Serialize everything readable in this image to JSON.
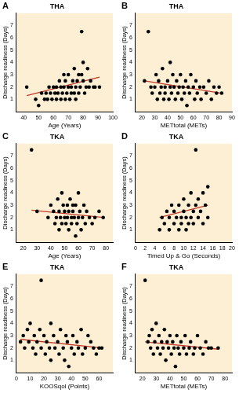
{
  "chart_data": [
    {
      "type": "scatter",
      "panel_label": "A",
      "title": "THA",
      "x_label": "Age (Years)",
      "y_label": "Discharge readiness (Days)",
      "xlim": [
        35,
        100
      ],
      "xticks": [
        40,
        50,
        60,
        70,
        80,
        90,
        100
      ],
      "ylim": [
        0,
        8
      ],
      "yticks": [
        1,
        2,
        3,
        4,
        5,
        6,
        7
      ],
      "grid": false,
      "series": [
        {
          "color": "#000000",
          "marker": "circle",
          "x": [
            42,
            48,
            50,
            52,
            54,
            55,
            56,
            57,
            58,
            59,
            60,
            61,
            62,
            62,
            63,
            64,
            65,
            65,
            66,
            67,
            67,
            68,
            68,
            69,
            70,
            70,
            71,
            72,
            72,
            73,
            74,
            74,
            75,
            75,
            76,
            77,
            77,
            78,
            79,
            79,
            80,
            80,
            81,
            82,
            83,
            84,
            85,
            87,
            88,
            91
          ],
          "values": [
            2,
            1,
            0.5,
            1.5,
            1,
            1.5,
            1,
            2,
            1.5,
            1,
            2,
            1.5,
            1,
            2,
            1.5,
            2.5,
            1,
            2,
            1.5,
            2,
            3,
            1,
            2.5,
            1.5,
            2,
            3,
            1,
            2,
            1.5,
            2.5,
            1.5,
            3.5,
            2,
            1,
            2.5,
            3,
            1.5,
            2,
            6.5,
            3,
            2.5,
            4,
            1.5,
            2,
            3.5,
            2,
            2.5,
            2,
            2,
            2
          ]
        },
        {
          "type": "line",
          "color": "#c0392b",
          "line_style": "solid",
          "x": [
            42,
            91
          ],
          "values": [
            1.3,
            2.8
          ]
        }
      ]
    },
    {
      "type": "scatter",
      "panel_label": "B",
      "title": "THA",
      "x_label": "METtotal (METs)",
      "y_label": "Discharge readiness (Days)",
      "xlim": [
        15,
        90
      ],
      "xticks": [
        20,
        30,
        40,
        50,
        60,
        70,
        80,
        90
      ],
      "ylim": [
        0,
        8
      ],
      "yticks": [
        1,
        2,
        3,
        4,
        5,
        6,
        7
      ],
      "grid": false,
      "series": [
        {
          "color": "#000000",
          "marker": "circle",
          "x": [
            22,
            25,
            27,
            28,
            30,
            31,
            32,
            33,
            34,
            35,
            36,
            37,
            38,
            38,
            40,
            41,
            42,
            42,
            43,
            44,
            45,
            46,
            47,
            48,
            49,
            50,
            51,
            52,
            53,
            54,
            55,
            56,
            57,
            58,
            60,
            61,
            62,
            63,
            65,
            66,
            68,
            70,
            72,
            74,
            76,
            78,
            80,
            82
          ],
          "values": [
            2.5,
            6.5,
            2,
            1.5,
            2,
            3,
            1,
            2.5,
            1.5,
            2,
            3.5,
            1,
            2,
            1.5,
            2.5,
            1,
            2,
            4,
            1.5,
            3,
            2,
            1,
            2.5,
            1.5,
            2,
            3,
            1,
            2,
            1.5,
            2.5,
            0.5,
            2,
            1.5,
            3,
            2,
            1,
            2.5,
            1.5,
            2,
            1,
            2,
            1.5,
            2.5,
            1,
            2,
            1.5,
            2,
            1.5
          ]
        },
        {
          "type": "line",
          "color": "#c0392b",
          "line_style": "solid",
          "x": [
            22,
            82
          ],
          "values": [
            2.5,
            1.5
          ]
        }
      ]
    },
    {
      "type": "scatter",
      "panel_label": "C",
      "title": "TKA",
      "x_label": "Age (Years)",
      "y_label": "Discharge readiness (Days)",
      "xlim": [
        15,
        85
      ],
      "xticks": [
        20,
        30,
        40,
        50,
        60,
        70,
        80
      ],
      "ylim": [
        0,
        8
      ],
      "yticks": [
        1,
        2,
        3,
        4,
        5,
        6,
        7
      ],
      "grid": false,
      "series": [
        {
          "color": "#000000",
          "marker": "circle",
          "x": [
            26,
            30,
            38,
            40,
            42,
            43,
            44,
            45,
            46,
            46,
            47,
            48,
            48,
            49,
            50,
            50,
            51,
            52,
            52,
            53,
            53,
            54,
            55,
            55,
            56,
            56,
            57,
            58,
            58,
            59,
            60,
            60,
            61,
            62,
            63,
            64,
            65,
            66,
            68,
            70,
            72,
            75,
            78
          ],
          "values": [
            7.5,
            2.5,
            2,
            3,
            2.5,
            1.5,
            2,
            3.5,
            1,
            2.5,
            2,
            4,
            1.5,
            3,
            2,
            2.5,
            1.5,
            3,
            2,
            1,
            2.5,
            3.5,
            2,
            1.5,
            3,
            2.5,
            2,
            0.5,
            3,
            1.5,
            2,
            4,
            2.5,
            1,
            2,
            3,
            1.5,
            2.5,
            2,
            1.5,
            2,
            2.5,
            2
          ]
        },
        {
          "type": "line",
          "color": "#c0392b",
          "line_style": "solid",
          "x": [
            26,
            78
          ],
          "values": [
            2.6,
            2.0
          ]
        }
      ]
    },
    {
      "type": "scatter",
      "panel_label": "D",
      "title": "TKA",
      "x_label": "Timed Up & Go (Seconds)",
      "y_label": "Discharge readiness (Days)",
      "xlim": [
        0,
        20
      ],
      "xticks": [
        0,
        2,
        4,
        6,
        8,
        10,
        12,
        14,
        16,
        18,
        20
      ],
      "ylim": [
        0,
        8
      ],
      "yticks": [
        1,
        2,
        3,
        4,
        5,
        6,
        7
      ],
      "grid": false,
      "series": [
        {
          "color": "#000000",
          "marker": "circle",
          "x": [
            5,
            5.5,
            6,
            6.5,
            7,
            7,
            7.5,
            8,
            8,
            8.5,
            9,
            9,
            9.5,
            9.5,
            10,
            10,
            10.5,
            10.5,
            11,
            11,
            11.5,
            11.5,
            12,
            12,
            12.5,
            12.5,
            13,
            13,
            13.5,
            14,
            14,
            14.5,
            15,
            15
          ],
          "values": [
            1,
            2,
            1.5,
            2.5,
            1,
            2,
            3,
            1.5,
            2.5,
            2,
            1,
            3,
            2,
            1.5,
            2.5,
            3.5,
            2,
            1,
            3,
            1.5,
            2,
            4,
            2.5,
            1.5,
            7.5,
            3,
            2,
            3.5,
            2.5,
            4,
            1.5,
            3,
            4.5,
            2
          ]
        },
        {
          "type": "line",
          "color": "#c0392b",
          "line_style": "solid",
          "x": [
            5,
            15
          ],
          "values": [
            2.0,
            3.0
          ]
        }
      ]
    },
    {
      "type": "scatter",
      "panel_label": "E",
      "title": "TKA",
      "x_label": "KOOSqol (Points)",
      "y_label": "Discharge readiness (Days)",
      "xlim": [
        0,
        70
      ],
      "xticks": [
        0,
        10,
        20,
        30,
        40,
        50,
        60
      ],
      "ylim": [
        0,
        8
      ],
      "yticks": [
        1,
        2,
        3,
        4,
        5,
        6,
        7
      ],
      "grid": false,
      "series": [
        {
          "color": "#000000",
          "marker": "circle",
          "x": [
            3,
            5,
            6,
            8,
            9,
            10,
            12,
            13,
            14,
            15,
            17,
            18,
            18,
            20,
            21,
            22,
            24,
            25,
            25,
            27,
            28,
            30,
            31,
            32,
            34,
            35,
            36,
            37,
            38,
            40,
            41,
            42,
            44,
            45,
            47,
            48,
            50,
            52,
            54,
            56,
            58,
            60,
            62
          ],
          "values": [
            2.5,
            3,
            2,
            3.5,
            2.5,
            4,
            2,
            3,
            1.5,
            2.5,
            3.5,
            7.5,
            2,
            3,
            1.5,
            2.5,
            2,
            4,
            1,
            3,
            2,
            2.5,
            1.5,
            3.5,
            2,
            1,
            3,
            2.5,
            0.5,
            2,
            3,
            1.5,
            2.5,
            2,
            3.5,
            1.5,
            2,
            3,
            2.5,
            2,
            1.5,
            2,
            2
          ]
        },
        {
          "type": "line",
          "color": "#c0392b",
          "line_style": "solid",
          "x": [
            3,
            62
          ],
          "values": [
            2.7,
            2.0
          ]
        }
      ]
    },
    {
      "type": "scatter",
      "panel_label": "F",
      "title": "TKA",
      "x_label": "METtotal (METs)",
      "y_label": "Discharge readiness (Days)",
      "xlim": [
        15,
        85
      ],
      "xticks": [
        20,
        30,
        40,
        50,
        60,
        70,
        80
      ],
      "ylim": [
        0,
        8
      ],
      "yticks": [
        1,
        2,
        3,
        4,
        5,
        6,
        7
      ],
      "grid": false,
      "series": [
        {
          "color": "#000000",
          "marker": "circle",
          "x": [
            22,
            24,
            25,
            26,
            27,
            28,
            29,
            30,
            31,
            32,
            33,
            34,
            35,
            36,
            37,
            38,
            39,
            40,
            41,
            42,
            43,
            44,
            45,
            46,
            47,
            48,
            50,
            51,
            52,
            54,
            55,
            57,
            58,
            60,
            62,
            64,
            66,
            68,
            70,
            75
          ],
          "values": [
            7.5,
            2.5,
            3,
            2,
            3.5,
            1.5,
            2.5,
            4,
            2,
            3,
            1.5,
            2.5,
            2,
            3.5,
            1,
            2.5,
            2,
            3,
            1.5,
            2.5,
            2,
            0.5,
            3,
            2,
            1.5,
            2.5,
            2,
            3,
            1.5,
            2,
            2.5,
            1.5,
            2,
            3,
            2,
            1.5,
            2.5,
            2,
            2,
            2
          ]
        },
        {
          "type": "line",
          "color": "#c0392b",
          "line_style": "solid",
          "x": [
            22,
            75
          ],
          "values": [
            2.5,
            1.9
          ]
        }
      ]
    }
  ]
}
